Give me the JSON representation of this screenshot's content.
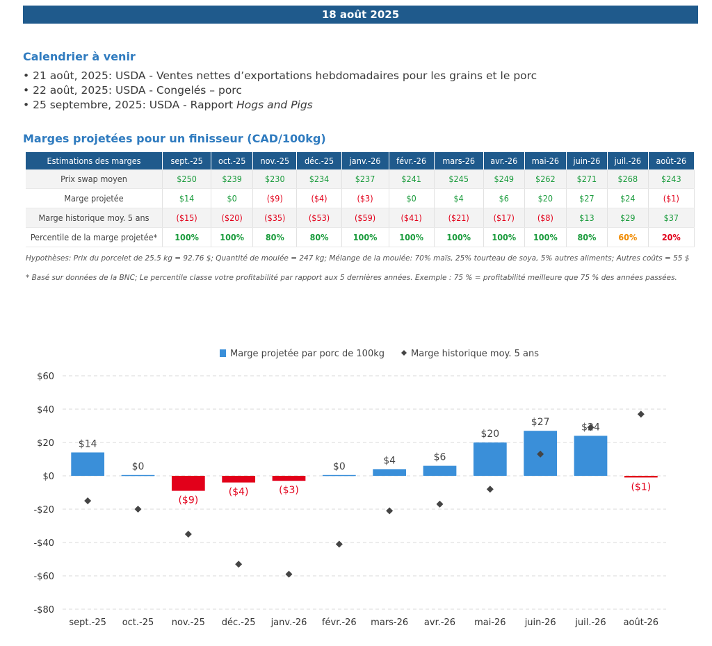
{
  "header": {
    "date": "18 août 2025"
  },
  "calendar": {
    "title": "Calendrier à venir",
    "items": [
      {
        "text": "21 août, 2025: USDA - Ventes nettes d’exportations hebdomadaires pour les grains et le porc",
        "italic": ""
      },
      {
        "text": "22 août, 2025: USDA - Congelés – porc",
        "italic": ""
      },
      {
        "text": "25 septembre, 2025: USDA - Rapport ",
        "italic": "Hogs and Pigs"
      }
    ]
  },
  "margins": {
    "title": "Marges projetées pour un finisseur (CAD/100kg)",
    "header_label": "Estimations des marges",
    "months": [
      "sept.-25",
      "oct.-25",
      "nov.-25",
      "déc.-25",
      "janv.-26",
      "févr.-26",
      "mars-26",
      "avr.-26",
      "mai-26",
      "juin-26",
      "juil.-26",
      "août-26"
    ],
    "rows": [
      {
        "label": "Prix swap moyen",
        "values": [
          "$250",
          "$239",
          "$230",
          "$234",
          "$237",
          "$241",
          "$245",
          "$249",
          "$262",
          "$271",
          "$268",
          "$243"
        ]
      },
      {
        "label": "Marge projetée",
        "values": [
          "$14",
          "$0",
          "($9)",
          "($4)",
          "($3)",
          "$0",
          "$4",
          "$6",
          "$20",
          "$27",
          "$24",
          "($1)"
        ]
      },
      {
        "label": "Marge historique moy. 5 ans",
        "values": [
          "($15)",
          "($20)",
          "($35)",
          "($53)",
          "($59)",
          "($41)",
          "($21)",
          "($17)",
          "($8)",
          "$13",
          "$29",
          "$37"
        ]
      },
      {
        "label": "Percentile de la marge projetée*",
        "values": [
          "100%",
          "100%",
          "80%",
          "80%",
          "100%",
          "100%",
          "100%",
          "100%",
          "100%",
          "80%",
          "60%",
          "20%"
        ]
      }
    ],
    "note1": "Hypothèses: Prix du porcelet de 25.5 kg = 92.76 $; Quantité de moulée = 247 kg; Mélange de la moulée: 70% maïs, 25% tourteau de soya, 5% autres aliments; Autres coûts = 55 $",
    "note2": "* Basé sur données de la BNC; Le percentile classe votre profitabilité par rapport aux 5 dernières années. Exemple : 75 % = profitabilité meilleure que 75 % des années passées."
  },
  "chart_data": {
    "type": "bar",
    "categories": [
      "sept.-25",
      "oct.-25",
      "nov.-25",
      "déc.-25",
      "janv.-26",
      "févr.-26",
      "mars-26",
      "avr.-26",
      "mai-26",
      "juin-26",
      "juil.-26",
      "août-26"
    ],
    "series": [
      {
        "name": "Marge projetée par porc de 100kg",
        "kind": "bar",
        "values": [
          14,
          0.5,
          -9,
          -4,
          -3,
          0.5,
          4,
          6,
          20,
          27,
          24,
          -1
        ],
        "labels": [
          "$14",
          "$0",
          "($9)",
          "($4)",
          "($3)",
          "$0",
          "$4",
          "$6",
          "$20",
          "$27",
          "$24",
          "($1)"
        ],
        "color_pos": "#3a8fd9",
        "color_neg": "#e2001a"
      },
      {
        "name": "Marge historique moy. 5 ans",
        "kind": "scatter",
        "values": [
          -15,
          -20,
          -35,
          -53,
          -59,
          -41,
          -21,
          -17,
          -8,
          13,
          29,
          37
        ],
        "color": "#444444"
      }
    ],
    "ylim": [
      -80,
      60
    ],
    "yticks": [
      -80,
      -60,
      -40,
      -20,
      0,
      20,
      40,
      60
    ],
    "ytick_labels": [
      "-$80",
      "-$60",
      "-$40",
      "-$20",
      "$0",
      "$20",
      "$40",
      "$60"
    ],
    "grid": true,
    "legend": "top-center"
  }
}
